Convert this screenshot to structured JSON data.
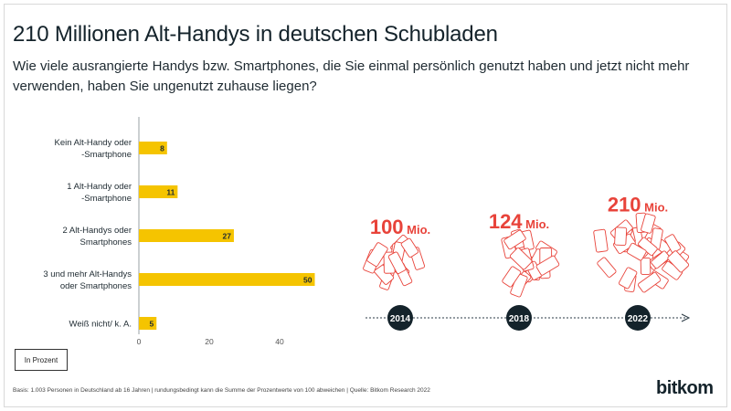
{
  "title": "210 Millionen Alt-Handys in deutschen Schubladen",
  "subtitle": "Wie viele ausrangierte Handys bzw. Smartphones, die Sie einmal persönlich genutzt haben und jetzt nicht mehr verwenden, haben Sie ungenutzt zuhause liegen?",
  "unit_note": "In Prozent",
  "footnote": "Basis: 1.003 Personen in Deutschland ab 16 Jahren | rundungsbedingt kann die Summe der Prozentwerte von 100 abweichen | Quelle: Bitkom Research 2022",
  "logo": "bitkom",
  "colors": {
    "bar": "#f5c400",
    "accent": "#e8433a",
    "dark": "#14232b"
  },
  "chart_data": [
    {
      "type": "bar",
      "orientation": "horizontal",
      "categories": [
        [
          "Kein Alt-Handy oder",
          "-Smartphone"
        ],
        [
          "1 Alt-Handy oder",
          "-Smartphone"
        ],
        [
          "2 Alt-Handys oder",
          "Smartphones"
        ],
        [
          "3 und mehr Alt-Handys",
          "oder Smartphones"
        ],
        [
          "Weiß nicht/ k. A."
        ]
      ],
      "values": [
        8,
        11,
        27,
        50,
        5
      ],
      "xlim": [
        0,
        50
      ],
      "xticks": [
        0,
        20,
        40
      ]
    },
    {
      "type": "pictogram",
      "items": [
        {
          "year": "2014",
          "num": "100",
          "unit": "Mio.",
          "value": 100
        },
        {
          "year": "2018",
          "num": "124",
          "unit": "Mio.",
          "value": 124
        },
        {
          "year": "2022",
          "num": "210",
          "unit": "Mio.",
          "value": 210
        }
      ]
    }
  ]
}
